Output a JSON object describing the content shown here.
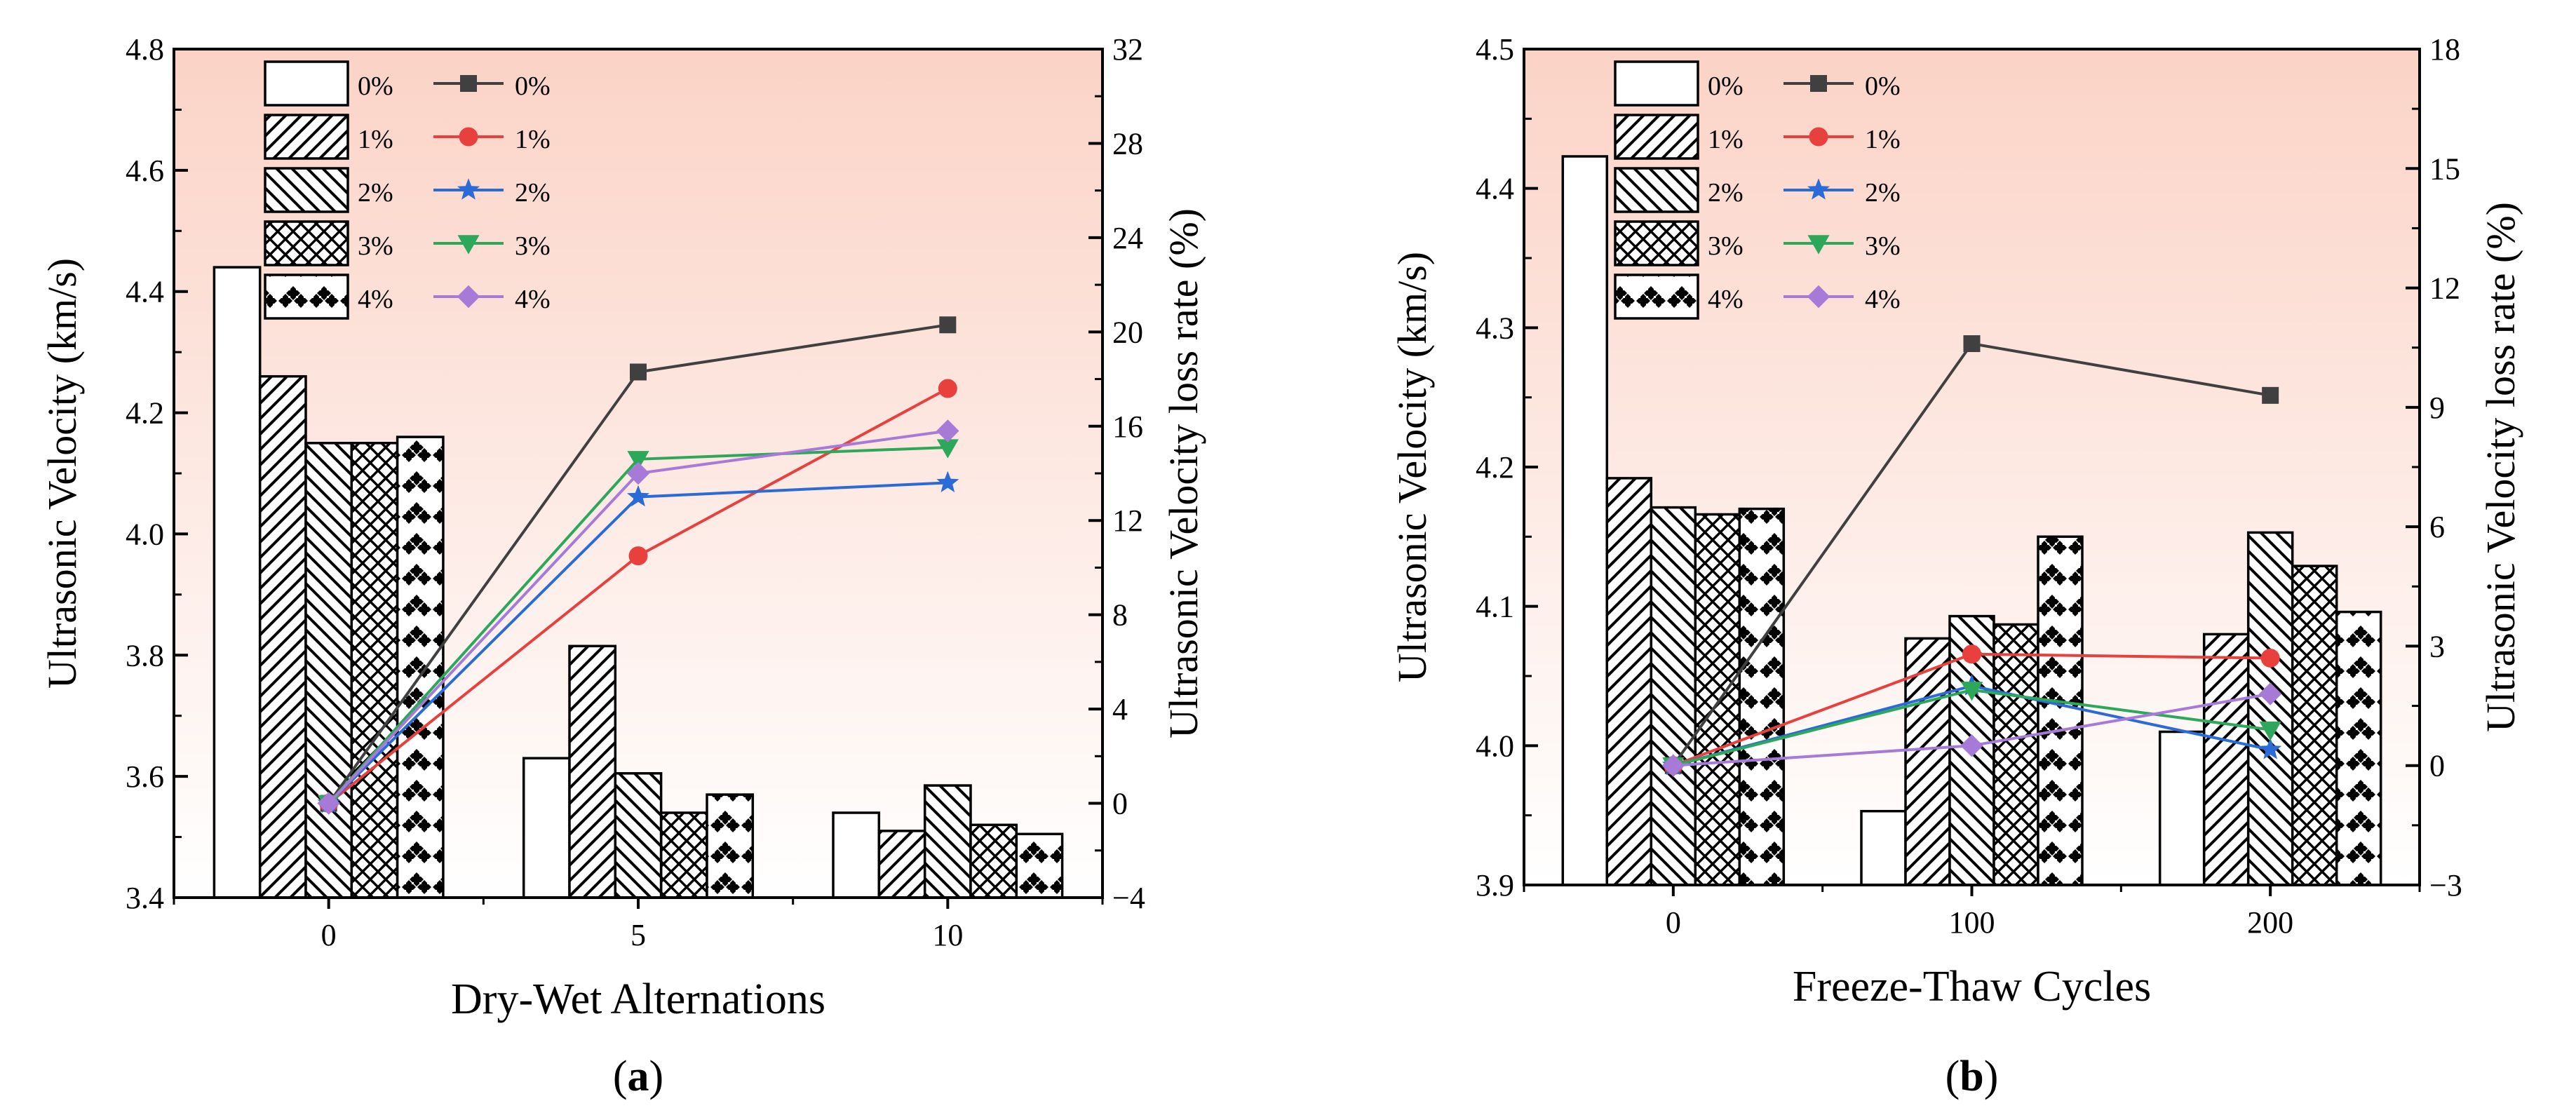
{
  "colors": {
    "bg_top": "#fbd3c6",
    "bg_bottom": "#ffffff",
    "series": [
      "#404040",
      "#e8403c",
      "#2a6bd8",
      "#2da85a",
      "#a87ad8"
    ]
  },
  "chart_data": [
    {
      "type": "bar+line",
      "panel_label": "a",
      "xlabel": "Dry-Wet Alternations",
      "ylabel": "Ultrasonic Velocity (km/s)",
      "y2label": "Ultrasonic Velocity loss rate (%)",
      "categories": [
        "0",
        "5",
        "10"
      ],
      "ylim": [
        3.4,
        4.8
      ],
      "yticks": [
        3.4,
        3.6,
        3.8,
        4.0,
        4.2,
        4.4,
        4.6,
        4.8
      ],
      "yticklabels": [
        "3.4",
        "3.6",
        "3.8",
        "4.0",
        "4.2",
        "4.4",
        "4.6",
        "4.8"
      ],
      "y2lim": [
        -4,
        32
      ],
      "y2ticks": [
        -4,
        0,
        4,
        8,
        12,
        16,
        20,
        24,
        28,
        32
      ],
      "y2ticklabels": [
        "−4",
        "0",
        "4",
        "8",
        "12",
        "16",
        "20",
        "24",
        "28",
        "32"
      ],
      "bar_series": [
        {
          "name": "0%",
          "pattern": "blank",
          "values": [
            4.44,
            3.63,
            3.54
          ]
        },
        {
          "name": "1%",
          "pattern": "diag-up",
          "values": [
            4.26,
            3.815,
            3.51
          ]
        },
        {
          "name": "2%",
          "pattern": "diag-down",
          "values": [
            4.15,
            3.605,
            3.585
          ]
        },
        {
          "name": "3%",
          "pattern": "cross",
          "values": [
            4.15,
            3.54,
            3.52
          ]
        },
        {
          "name": "4%",
          "pattern": "dots",
          "values": [
            4.16,
            3.57,
            3.505
          ]
        }
      ],
      "line_series": [
        {
          "name": "0%",
          "marker": "square",
          "values": [
            0,
            18.3,
            20.3
          ]
        },
        {
          "name": "1%",
          "marker": "circle",
          "values": [
            0,
            10.5,
            17.6
          ]
        },
        {
          "name": "2%",
          "marker": "star",
          "values": [
            0,
            13.0,
            13.6
          ]
        },
        {
          "name": "3%",
          "marker": "triangle-down",
          "values": [
            0,
            14.6,
            15.1
          ]
        },
        {
          "name": "4%",
          "marker": "diamond",
          "values": [
            0,
            14.0,
            15.8
          ]
        }
      ]
    },
    {
      "type": "bar+line",
      "panel_label": "b",
      "xlabel": "Freeze-Thaw Cycles",
      "ylabel": "Ultrasonic Velocity (km/s)",
      "y2label": "Ultrasonic Velocity loss rate (%)",
      "categories": [
        "0",
        "100",
        "200"
      ],
      "ylim": [
        3.9,
        4.5
      ],
      "yticks": [
        3.9,
        4.0,
        4.1,
        4.2,
        4.3,
        4.4,
        4.5
      ],
      "yticklabels": [
        "3.9",
        "4.0",
        "4.1",
        "4.2",
        "4.3",
        "4.4",
        "4.5"
      ],
      "y2lim": [
        -3,
        18
      ],
      "y2ticks": [
        -3,
        0,
        3,
        6,
        9,
        12,
        15,
        18
      ],
      "y2ticklabels": [
        "−3",
        "0",
        "3",
        "6",
        "9",
        "12",
        "15",
        "18"
      ],
      "bar_series": [
        {
          "name": "0%",
          "pattern": "blank",
          "values": [
            4.423,
            3.953,
            4.01
          ]
        },
        {
          "name": "1%",
          "pattern": "diag-up",
          "values": [
            4.192,
            4.077,
            4.08
          ]
        },
        {
          "name": "2%",
          "pattern": "diag-down",
          "values": [
            4.171,
            4.093,
            4.153
          ]
        },
        {
          "name": "3%",
          "pattern": "cross",
          "values": [
            4.166,
            4.087,
            4.129
          ]
        },
        {
          "name": "4%",
          "pattern": "dots",
          "values": [
            4.17,
            4.15,
            4.096
          ]
        }
      ],
      "line_series": [
        {
          "name": "0%",
          "marker": "square",
          "values": [
            0,
            10.6,
            9.3
          ]
        },
        {
          "name": "1%",
          "marker": "circle",
          "values": [
            0,
            2.8,
            2.7
          ]
        },
        {
          "name": "2%",
          "marker": "star",
          "values": [
            0,
            2.0,
            0.4
          ]
        },
        {
          "name": "3%",
          "marker": "triangle-down",
          "values": [
            0,
            1.9,
            0.9
          ]
        },
        {
          "name": "4%",
          "marker": "diamond",
          "values": [
            0,
            0.5,
            1.8
          ]
        }
      ]
    }
  ]
}
